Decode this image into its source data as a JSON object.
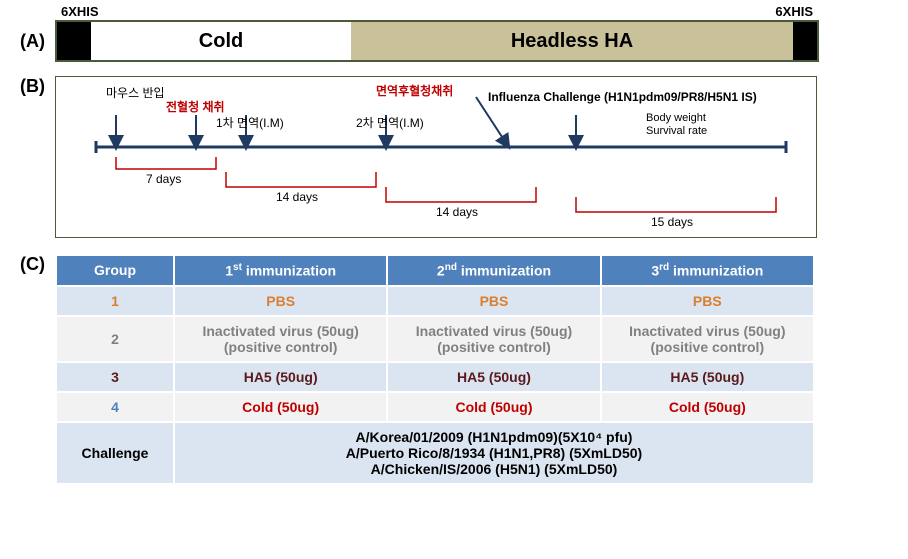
{
  "panelA": {
    "label": "(A)",
    "his_label": "6XHIS",
    "cold": "Cold",
    "headless": "Headless HA"
  },
  "panelB": {
    "label": "(B)",
    "events": {
      "mouse_in": "마우스 반입",
      "preserum": "전혈청 채취",
      "imm1": "1차 면역(I.M)",
      "imm2": "2차 면역(I.M)",
      "postserum": "면역후혈청채취",
      "challenge": "Influenza Challenge (H1N1pdm09/PR8/H5N1 IS)",
      "measure1": "Body weight",
      "measure2": "Survival rate"
    },
    "intervals": {
      "d7": "7 days",
      "d14a": "14 days",
      "d14b": "14 days",
      "d15": "15 days"
    },
    "colors": {
      "axis": "#1f3a60",
      "highlight": "#c00000",
      "bracket": "#c00000",
      "text": "#000000"
    }
  },
  "panelC": {
    "label": "(C)",
    "headers": [
      "Group",
      "1",
      "st",
      " immunization",
      "2",
      "nd",
      " immunization",
      "3",
      "rd",
      " immunization"
    ],
    "rows": [
      {
        "group": "1",
        "group_color": "#d97f2e",
        "val": "PBS",
        "val_color": "#d97f2e"
      },
      {
        "group": "2",
        "group_color": "#808080",
        "val": "Inactivated virus (50ug)\n(positive control)",
        "val_color": "#808080"
      },
      {
        "group": "3",
        "group_color": "#5a1a1a",
        "val": "HA5 (50ug)",
        "val_color": "#5a1a1a"
      },
      {
        "group": "4",
        "group_color": "#4f81bd",
        "val": "Cold (50ug)",
        "val_color": "#c00000"
      }
    ],
    "challenge_label": "Challenge",
    "challenge_lines": [
      "A/Korea/01/2009 (H1N1pdm09)(5X10⁴ pfu)",
      "A/Puerto Rico/8/1934 (H1N1,PR8) (5XmLD50)",
      "A/Chicken/IS/2006 (H5N1) (5XmLD50)"
    ]
  }
}
